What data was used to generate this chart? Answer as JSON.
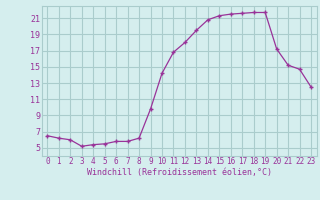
{
  "hours": [
    0,
    1,
    2,
    3,
    4,
    5,
    6,
    7,
    8,
    9,
    10,
    11,
    12,
    13,
    14,
    15,
    16,
    17,
    18,
    19,
    20,
    21,
    22,
    23
  ],
  "values": [
    6.5,
    6.2,
    6.0,
    5.2,
    5.4,
    5.5,
    5.8,
    5.8,
    6.2,
    9.8,
    14.2,
    16.8,
    18.0,
    19.5,
    20.8,
    21.3,
    21.5,
    21.6,
    21.7,
    21.7,
    17.2,
    15.2,
    14.7,
    12.5
  ],
  "line_color": "#993399",
  "marker": "+",
  "bg_color": "#d5eeee",
  "grid_color": "#aacccc",
  "xlabel": "Windchill (Refroidissement éolien,°C)",
  "ylabel_ticks": [
    5,
    7,
    9,
    11,
    13,
    15,
    17,
    19,
    21
  ],
  "ylim": [
    4.0,
    22.5
  ],
  "xlim": [
    -0.5,
    23.5
  ],
  "tick_color": "#993399",
  "label_color": "#993399",
  "font_family": "monospace",
  "tick_fontsize": 5.5,
  "xlabel_fontsize": 6.0
}
